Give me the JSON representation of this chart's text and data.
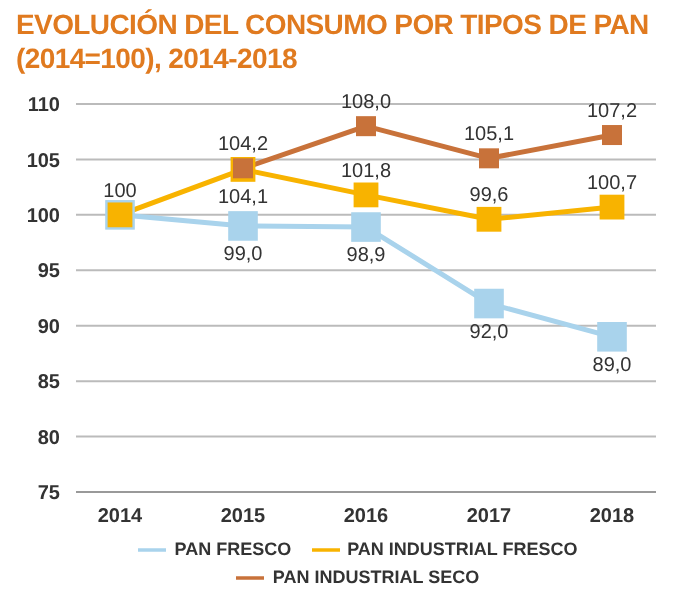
{
  "chart_data": {
    "type": "line",
    "title": "EVOLUCIÓN DEL CONSUMO POR TIPOS DE PAN (2014=100), 2014-2018",
    "categories": [
      "2014",
      "2015",
      "2016",
      "2017",
      "2018"
    ],
    "series": [
      {
        "name": "PAN FRESCO",
        "color": "#a9d3ec",
        "values": [
          100,
          99.0,
          98.9,
          92.0,
          89.0
        ],
        "value_labels": [
          null,
          "99,0",
          "98,9",
          "92,0",
          "89,0"
        ]
      },
      {
        "name": "PAN INDUSTRIAL FRESCO",
        "color": "#f8b300",
        "values": [
          100,
          104.1,
          101.8,
          99.6,
          100.7
        ],
        "value_labels": [
          "100",
          "104,1",
          "101,8",
          "99,6",
          "100,7"
        ]
      },
      {
        "name": "PAN INDUSTRIAL SECO",
        "color": "#c8723a",
        "values": [
          null,
          104.2,
          108.0,
          105.1,
          107.2
        ],
        "value_labels": [
          null,
          "104,2",
          "108,0",
          "105,1",
          "107,2"
        ]
      }
    ],
    "ylim": [
      75,
      110
    ],
    "yticks": [
      75,
      80,
      85,
      90,
      95,
      100,
      105,
      110
    ],
    "grid": "y",
    "legend": "bottom",
    "marker": "square",
    "line_style": "solid"
  }
}
